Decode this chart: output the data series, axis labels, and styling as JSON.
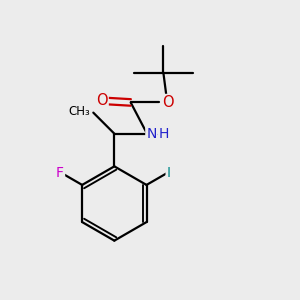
{
  "background_color": "#ececec",
  "atom_colors": {
    "C": "#000000",
    "H": "#000000",
    "N": "#2222cc",
    "O": "#cc0000",
    "F": "#cc00cc",
    "I": "#008888"
  },
  "bond_color": "#000000",
  "bond_width": 1.6,
  "figsize": [
    3.0,
    3.0
  ],
  "dpi": 100,
  "xlim": [
    0,
    10
  ],
  "ylim": [
    0,
    10
  ]
}
